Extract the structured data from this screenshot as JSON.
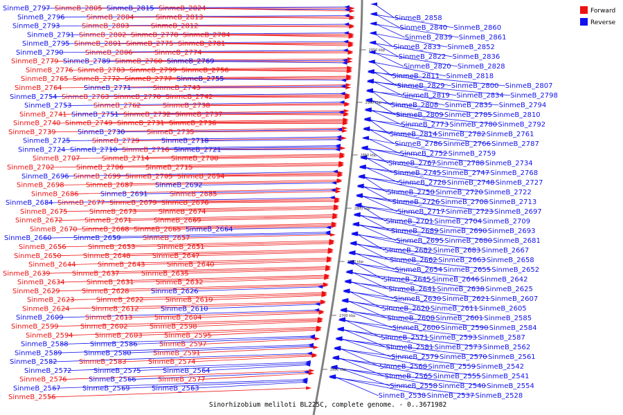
{
  "caption": "Sinorhizobium meliloti BL225C, complete genome. - 0..3671982",
  "legend": [
    {
      "label": "Forward",
      "color": "#ee1111"
    },
    {
      "label": "Reverse",
      "color": "#1111ee"
    }
  ],
  "colors": {
    "forward": "#ee1111",
    "reverse": "#1111ee",
    "backbone": "#808080"
  },
  "ticks": [
    "2950 kbp",
    "2900 kbp",
    "2850 kbp",
    "2800 kbp",
    "2750 kbp",
    "2700 kbp",
    "2650 kbp"
  ],
  "left_genes": [
    [
      "SinmeB_2797",
      "r"
    ],
    [
      "SinmeB_2805",
      "f"
    ],
    [
      "SinmeB_2815",
      "r"
    ],
    [
      "SinmeB_2824",
      "f"
    ],
    [
      "SinmeB_2796",
      "r"
    ],
    [
      "SinmeB_2804",
      "f"
    ],
    [
      "SinmeB_2813",
      "f"
    ],
    [
      "SinmeB_2793",
      "r"
    ],
    [
      "SinmeB_2803",
      "f"
    ],
    [
      "SinmeB_2812",
      "f"
    ],
    [
      "SinmeB_2791",
      "r"
    ],
    [
      "SinmeB_2802",
      "f"
    ],
    [
      "SinmeB_2778",
      "f"
    ],
    [
      "SinmeB_2784",
      "f"
    ],
    [
      "SinmeB_2795",
      "r"
    ],
    [
      "SinmeB_2801",
      "f"
    ],
    [
      "SinmeB_2775",
      "f"
    ],
    [
      "SinmeB_2781",
      "f"
    ],
    [
      "SinmeB_2790",
      "r"
    ],
    [
      "SinmeB_2806",
      "f"
    ],
    [
      "SinmeB_2774",
      "f"
    ],
    [
      "SinmeB_2779",
      "f"
    ],
    [
      "SinmeB_2789",
      "r"
    ],
    [
      "SinmeB_2760",
      "f"
    ],
    [
      "SinmeB_2769",
      "r"
    ],
    [
      "SinmeB_2776",
      "f"
    ],
    [
      "SinmeB_2783",
      "f"
    ],
    [
      "SinmeB_2799",
      "f"
    ],
    [
      "SinmeB_2756",
      "f"
    ],
    [
      "SinmeB_2765",
      "f"
    ],
    [
      "SinmeB_2772",
      "f"
    ],
    [
      "SinmeB_2777",
      "f"
    ],
    [
      "SinmeB_2755",
      "r"
    ],
    [
      "SinmeB_2764",
      "f"
    ],
    [
      "SinmeB_2771",
      "r"
    ],
    [
      "SinmeB_2743",
      "f"
    ],
    [
      "SinmeB_2754",
      "r"
    ],
    [
      "SinmeB_2763",
      "f"
    ],
    [
      "SinmeB_2770",
      "f"
    ],
    [
      "SinmeB_2742",
      "f"
    ],
    [
      "SinmeB_2753",
      "r"
    ],
    [
      "SinmeB_2762",
      "f"
    ],
    [
      "SinmeB_2738",
      "f"
    ],
    [
      "SinmeB_2741",
      "f"
    ],
    [
      "SinmeB_2751",
      "r"
    ],
    [
      "SinmeB_2732",
      "f"
    ],
    [
      "SinmeB_2737",
      "f"
    ],
    [
      "SinmeB_2740",
      "f"
    ],
    [
      "SinmeB_2749",
      "f"
    ],
    [
      "SinmeB_2731",
      "f"
    ],
    [
      "SinmeB_2736",
      "f"
    ],
    [
      "SinmeB_2739",
      "f"
    ],
    [
      "SinmeB_2730",
      "r"
    ],
    [
      "SinmeB_2735",
      "f"
    ],
    [
      "SinmeB_2725",
      "r"
    ],
    [
      "SinmeB_2729",
      "f"
    ],
    [
      "SinmeB_2718",
      "r"
    ],
    [
      "SinmeB_2724",
      "r"
    ],
    [
      "SinmeB_2710",
      "r"
    ],
    [
      "SinmeB_2716",
      "f"
    ],
    [
      "SinmeB_2721",
      "r"
    ],
    [
      "SinmeB_2707",
      "f"
    ],
    [
      "SinmeB_2714",
      "f"
    ],
    [
      "SinmeB_2700",
      "f"
    ],
    [
      "SinmeB_2702",
      "f"
    ],
    [
      "SinmeB_2706",
      "f"
    ],
    [
      "SinmeB_2715",
      "f"
    ],
    [
      "SinmeB_2696",
      "r"
    ],
    [
      "SinmeB_2699",
      "f"
    ],
    [
      "SinmeB_2705",
      "f"
    ],
    [
      "SinmeB_2694",
      "f"
    ],
    [
      "SinmeB_2698",
      "f"
    ],
    [
      "SinmeB_2687",
      "f"
    ],
    [
      "SinmeB_2692",
      "r"
    ],
    [
      "SinmeB_2686",
      "f"
    ],
    [
      "SinmeB_2691",
      "r"
    ],
    [
      "SinmeB_2685",
      "f"
    ],
    [
      "SinmeB_2684",
      "r"
    ],
    [
      "SinmeB_2677",
      "f"
    ],
    [
      "SinmeB_2679",
      "f"
    ],
    [
      "SinmeB_2676",
      "f"
    ],
    [
      "SinmeB_2675",
      "f"
    ],
    [
      "SinmeB_2673",
      "f"
    ],
    [
      "SinmeB_2674",
      "f"
    ],
    [
      "SinmeB_2672",
      "f"
    ],
    [
      "SinmeB_2671",
      "f"
    ],
    [
      "SinmeB_2669",
      "f"
    ],
    [
      "SinmeB_2670",
      "f"
    ],
    [
      "SinmeB_2668",
      "f"
    ],
    [
      "SinmeB_2665",
      "f"
    ],
    [
      "SinmeB_2664",
      "r"
    ],
    [
      "SinmeB_2660",
      "r"
    ],
    [
      "SinmeB_2659",
      "r"
    ],
    [
      "SinmeB_2657",
      "f"
    ],
    [
      "SinmeB_2656",
      "f"
    ],
    [
      "SinmeB_2653",
      "f"
    ],
    [
      "SinmeB_2651",
      "f"
    ],
    [
      "SinmeB_2650",
      "f"
    ],
    [
      "SinmeB_2648",
      "f"
    ],
    [
      "SinmeB_2647",
      "f"
    ],
    [
      "SinmeB_2644",
      "f"
    ],
    [
      "SinmeB_2643",
      "f"
    ],
    [
      "SinmeB_2640",
      "f"
    ],
    [
      "SinmeB_2639",
      "f"
    ],
    [
      "SinmeB_2637",
      "f"
    ],
    [
      "SinmeB_2635",
      "f"
    ],
    [
      "SinmeB_2634",
      "f"
    ],
    [
      "SinmeB_2631",
      "f"
    ],
    [
      "SinmeB_2632",
      "f"
    ],
    [
      "SinmeB_2629",
      "f"
    ],
    [
      "SinmeB_2628",
      "f"
    ],
    [
      "SinmeB_2626",
      "r"
    ],
    [
      "SinmeB_2623",
      "f"
    ],
    [
      "SinmeB_2622",
      "f"
    ],
    [
      "SinmeB_2619",
      "f"
    ],
    [
      "SinmeB_2624",
      "f"
    ],
    [
      "SinmeB_2612",
      "f"
    ],
    [
      "SinmeB_2610",
      "r"
    ],
    [
      "SinmeB_2609",
      "r"
    ],
    [
      "SinmeB_2613",
      "f"
    ],
    [
      "SinmeB_2604",
      "f"
    ],
    [
      "SinmeB_2599",
      "f"
    ],
    [
      "SinmeB_2602",
      "f"
    ],
    [
      "SinmeB_2598",
      "f"
    ],
    [
      "SinmeB_2594",
      "f"
    ],
    [
      "SinmeB_2603",
      "f"
    ],
    [
      "SinmeB_2595",
      "f"
    ],
    [
      "SinmeB_2588",
      "r"
    ],
    [
      "SinmeB_2586",
      "r"
    ],
    [
      "SinmeB_2597",
      "f"
    ],
    [
      "SinmeB_2589",
      "r"
    ],
    [
      "SinmeB_2580",
      "r"
    ],
    [
      "SinmeB_2591",
      "f"
    ],
    [
      "SinmeB_2582",
      "r"
    ],
    [
      "SinmeB_2583",
      "f"
    ],
    [
      "SinmeB_2574",
      "f"
    ],
    [
      "SinmeB_2572",
      "r"
    ],
    [
      "SinmeB_2575",
      "r"
    ],
    [
      "SinmeB_2564",
      "r"
    ],
    [
      "SinmeB_2576",
      "f"
    ],
    [
      "SinmeB_2566",
      "r"
    ],
    [
      "SinmeB_2577",
      "f"
    ],
    [
      "SinmeB_2567",
      "r"
    ],
    [
      "SinmeB_2569",
      "r"
    ],
    [
      "SinmeB_2563",
      "r"
    ],
    [
      "SinmeB_2556",
      "f"
    ]
  ],
  "right_genes": [
    [
      "SinmeB_2858",
      "r"
    ],
    [
      "SinmeB_2840",
      "r"
    ],
    [
      "SinmeB_2860",
      "r"
    ],
    [
      "SinmeB_2839",
      "r"
    ],
    [
      "SinmeB_2861",
      "r"
    ],
    [
      "SinmeB_2833",
      "r"
    ],
    [
      "SinmeB_2852",
      "r"
    ],
    [
      "SinmeB_2822",
      "r"
    ],
    [
      "SinmeB_2836",
      "r"
    ],
    [
      "SinmeB_2820",
      "r"
    ],
    [
      "SinmeB_2828",
      "r"
    ],
    [
      "SinmeB_2811",
      "r"
    ],
    [
      "SinmeB_2818",
      "r"
    ],
    [
      "SinmeB_2829",
      "r"
    ],
    [
      "SinmeB_2800",
      "r"
    ],
    [
      "SinmeB_2807",
      "r"
    ],
    [
      "SinmeB_2819",
      "r"
    ],
    [
      "SinmeB_2834",
      "r"
    ],
    [
      "SinmeB_2798",
      "r"
    ],
    [
      "SinmeB_2808",
      "r"
    ],
    [
      "SinmeB_2835",
      "r"
    ],
    [
      "SinmeB_2794",
      "r"
    ],
    [
      "SinmeB_2809",
      "r"
    ],
    [
      "SinmeB_2785",
      "r"
    ],
    [
      "SinmeB_2810",
      "r"
    ],
    [
      "SinmeB_2773",
      "r"
    ],
    [
      "SinmeB_2780",
      "r"
    ],
    [
      "SinmeB_2792",
      "r"
    ],
    [
      "SinmeB_2814",
      "r"
    ],
    [
      "SinmeB_2782",
      "r"
    ],
    [
      "SinmeB_2761",
      "r"
    ],
    [
      "SinmeB_2786",
      "r"
    ],
    [
      "SinmeB_2766",
      "r"
    ],
    [
      "SinmeB_2787",
      "r"
    ],
    [
      "SinmeB_2752",
      "r"
    ],
    [
      "SinmeB_2759",
      "r"
    ],
    [
      "SinmeB_2767",
      "r"
    ],
    [
      "SinmeB_2788",
      "r"
    ],
    [
      "SinmeB_2734",
      "r"
    ],
    [
      "SinmeB_2745",
      "r"
    ],
    [
      "SinmeB_2747",
      "r"
    ],
    [
      "SinmeB_2768",
      "r"
    ],
    [
      "SinmeB_2728",
      "r"
    ],
    [
      "SinmeB_2748",
      "r"
    ],
    [
      "SinmeB_2727",
      "r"
    ],
    [
      "SinmeB_2750",
      "r"
    ],
    [
      "SinmeB_2720",
      "r"
    ],
    [
      "SinmeB_2722",
      "r"
    ],
    [
      "SinmeB_2726",
      "r"
    ],
    [
      "SinmeB_2708",
      "r"
    ],
    [
      "SinmeB_2713",
      "r"
    ],
    [
      "SinmeB_2717",
      "r"
    ],
    [
      "SinmeB_2723",
      "r"
    ],
    [
      "SinmeB_2697",
      "r"
    ],
    [
      "SinmeB_2701",
      "r"
    ],
    [
      "SinmeB_2704",
      "r"
    ],
    [
      "SinmeB_2709",
      "r"
    ],
    [
      "SinmeB_2689",
      "r"
    ],
    [
      "SinmeB_2690",
      "r"
    ],
    [
      "SinmeB_2693",
      "r"
    ],
    [
      "SinmeB_2695",
      "r"
    ],
    [
      "SinmeB_2680",
      "r"
    ],
    [
      "SinmeB_2681",
      "r"
    ],
    [
      "SinmeB_2682",
      "r"
    ],
    [
      "SinmeB_2683",
      "r"
    ],
    [
      "SinmeB_2667",
      "r"
    ],
    [
      "SinmeB_2662",
      "r"
    ],
    [
      "SinmeB_2663",
      "r"
    ],
    [
      "SinmeB_2658",
      "r"
    ],
    [
      "SinmeB_2654",
      "r"
    ],
    [
      "SinmeB_2655",
      "r"
    ],
    [
      "SinmeB_2652",
      "r"
    ],
    [
      "SinmeB_2645",
      "r"
    ],
    [
      "SinmeB_2646",
      "r"
    ],
    [
      "SinmeB_2642",
      "r"
    ],
    [
      "SinmeB_2641",
      "r"
    ],
    [
      "SinmeB_2638",
      "r"
    ],
    [
      "SinmeB_2625",
      "r"
    ],
    [
      "SinmeB_2630",
      "r"
    ],
    [
      "SinmeB_2621",
      "r"
    ],
    [
      "SinmeB_2607",
      "r"
    ],
    [
      "SinmeB_2620",
      "r"
    ],
    [
      "SinmeB_2611",
      "r"
    ],
    [
      "SinmeB_2605",
      "r"
    ],
    [
      "SinmeB_2608",
      "r"
    ],
    [
      "SinmeB_2601",
      "r"
    ],
    [
      "SinmeB_2585",
      "r"
    ],
    [
      "SinmeB_2600",
      "r"
    ],
    [
      "SinmeB_2590",
      "r"
    ],
    [
      "SinmeB_2584",
      "r"
    ],
    [
      "SinmeB_2571",
      "r"
    ],
    [
      "SinmeB_2593",
      "r"
    ],
    [
      "SinmeB_2587",
      "r"
    ],
    [
      "SinmeB_2581",
      "r"
    ],
    [
      "SinmeB_2573",
      "r"
    ],
    [
      "SinmeB_2562",
      "r"
    ],
    [
      "SinmeB_2579",
      "r"
    ],
    [
      "SinmeB_2570",
      "r"
    ],
    [
      "SinmeB_2561",
      "r"
    ],
    [
      "SinmeB_2568",
      "r"
    ],
    [
      "SinmeB_2559",
      "r"
    ],
    [
      "SinmeB_2542",
      "r"
    ],
    [
      "SinmeB_2565",
      "r"
    ],
    [
      "SinmeB_2555",
      "r"
    ],
    [
      "SinmeB_2541",
      "r"
    ],
    [
      "SinmeB_2558",
      "r"
    ],
    [
      "SinmeB_2540",
      "r"
    ],
    [
      "SinmeB_2554",
      "r"
    ],
    [
      "SinmeB_2538",
      "r"
    ],
    [
      "SinmeB_2537",
      "r"
    ],
    [
      "SinmeB_2528",
      "r"
    ]
  ]
}
